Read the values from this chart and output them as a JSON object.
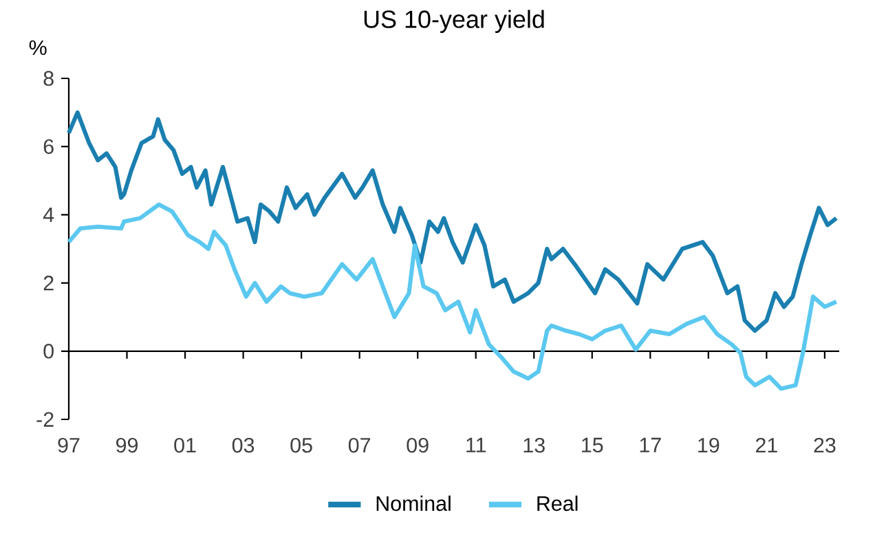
{
  "chart_data": {
    "type": "line",
    "title": "US 10-year yield",
    "ylabel": "%",
    "xlim": [
      1997,
      2023.5
    ],
    "ylim": [
      -2,
      8
    ],
    "yticks": [
      -2,
      0,
      2,
      4,
      6,
      8
    ],
    "xticks": [
      {
        "value": 1997,
        "label": "97"
      },
      {
        "value": 1999,
        "label": "99"
      },
      {
        "value": 2001,
        "label": "01"
      },
      {
        "value": 2003,
        "label": "03"
      },
      {
        "value": 2005,
        "label": "05"
      },
      {
        "value": 2007,
        "label": "07"
      },
      {
        "value": 2009,
        "label": "09"
      },
      {
        "value": 2011,
        "label": "11"
      },
      {
        "value": 2013,
        "label": "13"
      },
      {
        "value": 2015,
        "label": "15"
      },
      {
        "value": 2017,
        "label": "17"
      },
      {
        "value": 2019,
        "label": "19"
      },
      {
        "value": 2021,
        "label": "21"
      },
      {
        "value": 2023,
        "label": "23"
      }
    ],
    "legend": "bottom",
    "marker": "none",
    "line_style": "solid",
    "series": [
      {
        "name": "Nominal",
        "color": "#1a7fb0",
        "x": [
          1997.0,
          1997.3,
          1997.7,
          1998.0,
          1998.3,
          1998.6,
          1998.8,
          1998.9,
          1999.15,
          1999.5,
          1999.9,
          2000.07,
          2000.3,
          2000.6,
          2000.9,
          2001.2,
          2001.4,
          2001.7,
          2001.9,
          2002.3,
          2002.55,
          2002.8,
          2003.15,
          2003.4,
          2003.6,
          2003.9,
          2004.2,
          2004.5,
          2004.8,
          2005.2,
          2005.45,
          2005.8,
          2006.4,
          2006.85,
          2007.1,
          2007.45,
          2007.8,
          2008.2,
          2008.4,
          2008.8,
          2009.1,
          2009.4,
          2009.7,
          2009.9,
          2010.2,
          2010.55,
          2011.0,
          2011.3,
          2011.6,
          2012.0,
          2012.3,
          2012.8,
          2013.15,
          2013.45,
          2013.6,
          2014.0,
          2014.4,
          2015.1,
          2015.45,
          2015.9,
          2016.55,
          2016.9,
          2017.45,
          2018.1,
          2018.8,
          2019.15,
          2019.65,
          2020.0,
          2020.25,
          2020.6,
          2021.0,
          2021.3,
          2021.6,
          2021.9,
          2022.2,
          2022.5,
          2022.8,
          2023.1,
          2023.4
        ],
        "values": [
          6.4,
          7.0,
          6.1,
          5.6,
          5.8,
          5.4,
          4.5,
          4.6,
          5.3,
          6.1,
          6.3,
          6.8,
          6.2,
          5.9,
          5.2,
          5.4,
          4.8,
          5.3,
          4.3,
          5.4,
          4.6,
          3.8,
          3.9,
          3.2,
          4.3,
          4.1,
          3.8,
          4.8,
          4.2,
          4.6,
          4.0,
          4.5,
          5.2,
          4.5,
          4.8,
          5.3,
          4.3,
          3.5,
          4.2,
          3.4,
          2.6,
          3.8,
          3.5,
          3.9,
          3.2,
          2.6,
          3.7,
          3.1,
          1.9,
          2.1,
          1.45,
          1.7,
          2.0,
          3.0,
          2.7,
          3.0,
          2.55,
          1.7,
          2.4,
          2.1,
          1.4,
          2.55,
          2.1,
          3.0,
          3.2,
          2.8,
          1.7,
          1.9,
          0.9,
          0.6,
          0.9,
          1.7,
          1.3,
          1.6,
          2.55,
          3.4,
          4.2,
          3.7,
          3.9
        ]
      },
      {
        "name": "Real",
        "color": "#5bc8f0",
        "x": [
          1997.0,
          1997.4,
          1998.0,
          1998.8,
          1998.9,
          1999.45,
          2000.1,
          2000.55,
          2001.1,
          2001.5,
          2001.8,
          2002.0,
          2002.4,
          2002.7,
          2003.1,
          2003.4,
          2003.8,
          2004.3,
          2004.6,
          2005.1,
          2005.7,
          2006.4,
          2006.9,
          2007.45,
          2007.8,
          2008.2,
          2008.7,
          2008.9,
          2009.2,
          2009.65,
          2009.95,
          2010.4,
          2010.8,
          2011.0,
          2011.45,
          2011.9,
          2012.3,
          2012.8,
          2013.15,
          2013.45,
          2013.6,
          2014.1,
          2014.55,
          2015.0,
          2015.45,
          2016.0,
          2016.5,
          2017.0,
          2017.65,
          2018.25,
          2018.85,
          2019.3,
          2019.8,
          2020.1,
          2020.3,
          2020.6,
          2021.1,
          2021.5,
          2022.0,
          2022.25,
          2022.6,
          2023.0,
          2023.4
        ],
        "values": [
          3.2,
          3.6,
          3.65,
          3.6,
          3.8,
          3.9,
          4.3,
          4.1,
          3.4,
          3.2,
          3.0,
          3.5,
          3.1,
          2.4,
          1.6,
          2.0,
          1.45,
          1.9,
          1.7,
          1.6,
          1.7,
          2.55,
          2.1,
          2.7,
          1.9,
          1.0,
          1.7,
          3.1,
          1.9,
          1.7,
          1.2,
          1.45,
          0.55,
          1.2,
          0.2,
          -0.2,
          -0.6,
          -0.8,
          -0.6,
          0.6,
          0.75,
          0.6,
          0.5,
          0.35,
          0.6,
          0.75,
          0.05,
          0.6,
          0.5,
          0.8,
          1.0,
          0.5,
          0.2,
          -0.05,
          -0.75,
          -1.0,
          -0.75,
          -1.1,
          -1.0,
          -0.05,
          1.6,
          1.3,
          1.45
        ]
      }
    ]
  }
}
